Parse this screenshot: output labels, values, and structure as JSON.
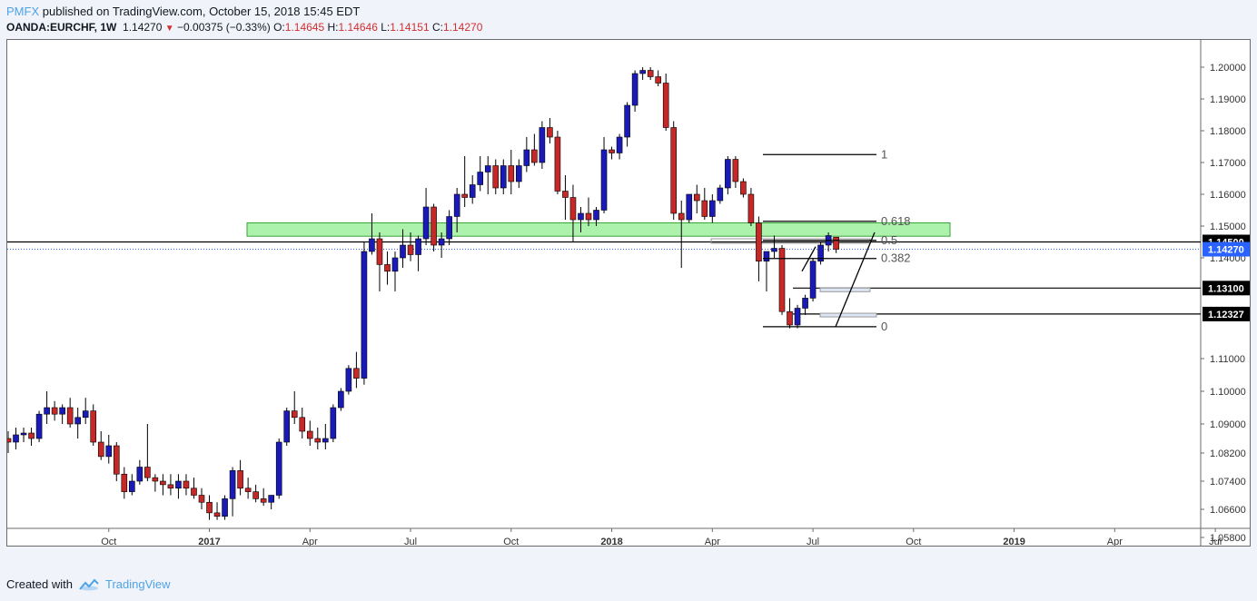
{
  "header": {
    "brand": "PMFX",
    "published": "published on TradingView.com, October 15, 2018 15:45 EDT"
  },
  "symbol": {
    "name": "OANDA:EURCHF, 1W",
    "last": "1.14270",
    "change": "−0.00375 (−0.33%)",
    "open_label": "O:",
    "open": "1.14645",
    "high_label": "H:",
    "high": "1.14646",
    "low_label": "L:",
    "low": "1.14151",
    "close_label": "C:",
    "close": "1.14270"
  },
  "footer": {
    "created_with": "Created with",
    "brand": "TradingView"
  },
  "chart_data": {
    "type": "candlestick",
    "timeframe": "1W",
    "y_ticks": [
      "1.20000",
      "1.19000",
      "1.18000",
      "1.17000",
      "1.16000",
      "1.15000",
      "1.14000",
      "1.11000",
      "1.10000",
      "1.09000",
      "1.08200",
      "1.07400",
      "1.06600",
      "1.05800"
    ],
    "y_tick_values": [
      1.2,
      1.19,
      1.18,
      1.17,
      1.16,
      1.15,
      1.14,
      1.11,
      1.1,
      1.09,
      1.082,
      1.074,
      1.066,
      1.058
    ],
    "x_ticks": [
      {
        "label": "Oct",
        "bold": false,
        "t": 13
      },
      {
        "label": "2017",
        "bold": true,
        "t": 26
      },
      {
        "label": "Apr",
        "bold": false,
        "t": 39
      },
      {
        "label": "Jul",
        "bold": false,
        "t": 52
      },
      {
        "label": "Oct",
        "bold": false,
        "t": 65
      },
      {
        "label": "2018",
        "bold": true,
        "t": 78
      },
      {
        "label": "Apr",
        "bold": false,
        "t": 91
      },
      {
        "label": "Jul",
        "bold": false,
        "t": 104
      },
      {
        "label": "Oct",
        "bold": false,
        "t": 117
      },
      {
        "label": "2019",
        "bold": true,
        "t": 130
      },
      {
        "label": "Apr",
        "bold": false,
        "t": 143
      },
      {
        "label": "Jul",
        "bold": false,
        "t": 156
      }
    ],
    "price_labels": [
      {
        "text": "1.14500",
        "value": 1.145,
        "color": "#000000"
      },
      {
        "text": "1.13100",
        "value": 1.131,
        "color": "#000000"
      },
      {
        "text": "1.12327",
        "value": 1.12327,
        "color": "#000000"
      },
      {
        "text": "1.14270",
        "value": 1.1427,
        "color": "#2962ff"
      }
    ],
    "fib_levels": [
      {
        "label": "1",
        "value": 1.1725
      },
      {
        "label": "0.618",
        "value": 1.1515
      },
      {
        "label": "0.5",
        "value": 1.1455
      },
      {
        "label": "0.382",
        "value": 1.1398
      },
      {
        "label": "0",
        "value": 1.1195
      }
    ],
    "horizontal_lines": [
      1.145,
      1.131,
      1.12327
    ],
    "support_zone": {
      "from": 1.1468,
      "to": 1.151
    },
    "colors": {
      "up": "#1a1ab8",
      "down": "#c62828",
      "zone": "#90ee90",
      "last_price": "#2962ff"
    },
    "candles": [
      [
        1.086,
        1.088,
        1.082,
        1.085
      ],
      [
        1.085,
        1.089,
        1.083,
        1.087
      ],
      [
        1.087,
        1.089,
        1.085,
        1.0875
      ],
      [
        1.0875,
        1.089,
        1.084,
        1.086
      ],
      [
        1.086,
        1.094,
        1.085,
        1.093
      ],
      [
        1.093,
        1.1,
        1.09,
        1.095
      ],
      [
        1.095,
        1.097,
        1.091,
        1.093
      ],
      [
        1.093,
        1.096,
        1.09,
        1.095
      ],
      [
        1.095,
        1.098,
        1.089,
        1.09
      ],
      [
        1.09,
        1.095,
        1.086,
        1.092
      ],
      [
        1.092,
        1.098,
        1.09,
        1.094
      ],
      [
        1.094,
        1.096,
        1.084,
        1.085
      ],
      [
        1.085,
        1.088,
        1.08,
        1.081
      ],
      [
        1.081,
        1.087,
        1.079,
        1.084
      ],
      [
        1.084,
        1.085,
        1.074,
        1.076
      ],
      [
        1.076,
        1.078,
        1.069,
        1.071
      ],
      [
        1.071,
        1.076,
        1.07,
        1.074
      ],
      [
        1.074,
        1.08,
        1.073,
        1.078
      ],
      [
        1.078,
        1.09,
        1.074,
        1.075
      ],
      [
        1.075,
        1.076,
        1.071,
        1.074
      ],
      [
        1.074,
        1.076,
        1.07,
        1.073
      ],
      [
        1.073,
        1.076,
        1.07,
        1.072
      ],
      [
        1.072,
        1.076,
        1.069,
        1.074
      ],
      [
        1.074,
        1.076,
        1.07,
        1.072
      ],
      [
        1.072,
        1.075,
        1.069,
        1.07
      ],
      [
        1.07,
        1.072,
        1.066,
        1.068
      ],
      [
        1.068,
        1.07,
        1.063,
        1.065
      ],
      [
        1.065,
        1.068,
        1.063,
        1.064
      ],
      [
        1.064,
        1.07,
        1.063,
        1.069
      ],
      [
        1.069,
        1.078,
        1.064,
        1.077
      ],
      [
        1.077,
        1.08,
        1.07,
        1.072
      ],
      [
        1.072,
        1.075,
        1.069,
        1.071
      ],
      [
        1.071,
        1.073,
        1.068,
        1.069
      ],
      [
        1.069,
        1.072,
        1.067,
        1.068
      ],
      [
        1.068,
        1.07,
        1.066,
        1.07
      ],
      [
        1.07,
        1.086,
        1.069,
        1.085
      ],
      [
        1.085,
        1.095,
        1.084,
        1.094
      ],
      [
        1.094,
        1.1,
        1.09,
        1.092
      ],
      [
        1.092,
        1.095,
        1.086,
        1.088
      ],
      [
        1.088,
        1.091,
        1.084,
        1.086
      ],
      [
        1.086,
        1.089,
        1.083,
        1.085
      ],
      [
        1.085,
        1.09,
        1.083,
        1.086
      ],
      [
        1.086,
        1.096,
        1.085,
        1.095
      ],
      [
        1.095,
        1.101,
        1.094,
        1.1
      ],
      [
        1.1,
        1.108,
        1.099,
        1.107
      ],
      [
        1.107,
        1.112,
        1.101,
        1.104
      ],
      [
        1.104,
        1.145,
        1.102,
        1.142
      ],
      [
        1.142,
        1.154,
        1.141,
        1.146
      ],
      [
        1.146,
        1.148,
        1.13,
        1.138
      ],
      [
        1.138,
        1.142,
        1.132,
        1.136
      ],
      [
        1.136,
        1.142,
        1.13,
        1.14
      ],
      [
        1.14,
        1.149,
        1.137,
        1.144
      ],
      [
        1.144,
        1.148,
        1.139,
        1.141
      ],
      [
        1.141,
        1.147,
        1.136,
        1.146
      ],
      [
        1.146,
        1.162,
        1.144,
        1.156
      ],
      [
        1.156,
        1.157,
        1.142,
        1.144
      ],
      [
        1.144,
        1.148,
        1.14,
        1.146
      ],
      [
        1.146,
        1.155,
        1.144,
        1.153
      ],
      [
        1.153,
        1.162,
        1.148,
        1.16
      ],
      [
        1.16,
        1.172,
        1.156,
        1.159
      ],
      [
        1.159,
        1.166,
        1.157,
        1.163
      ],
      [
        1.163,
        1.172,
        1.161,
        1.167
      ],
      [
        1.167,
        1.172,
        1.16,
        1.169
      ],
      [
        1.169,
        1.171,
        1.16,
        1.162
      ],
      [
        1.162,
        1.171,
        1.16,
        1.169
      ],
      [
        1.169,
        1.174,
        1.16,
        1.164
      ],
      [
        1.164,
        1.171,
        1.162,
        1.169
      ],
      [
        1.169,
        1.178,
        1.167,
        1.174
      ],
      [
        1.174,
        1.179,
        1.169,
        1.17
      ],
      [
        1.17,
        1.183,
        1.168,
        1.181
      ],
      [
        1.181,
        1.184,
        1.176,
        1.178
      ],
      [
        1.178,
        1.18,
        1.16,
        1.161
      ],
      [
        1.161,
        1.166,
        1.152,
        1.159
      ],
      [
        1.159,
        1.163,
        1.145,
        1.152
      ],
      [
        1.152,
        1.156,
        1.148,
        1.154
      ],
      [
        1.154,
        1.159,
        1.15,
        1.152
      ],
      [
        1.152,
        1.156,
        1.15,
        1.155
      ],
      [
        1.155,
        1.178,
        1.154,
        1.174
      ],
      [
        1.174,
        1.175,
        1.171,
        1.173
      ],
      [
        1.173,
        1.179,
        1.171,
        1.178
      ],
      [
        1.178,
        1.189,
        1.175,
        1.188
      ],
      [
        1.188,
        1.199,
        1.186,
        1.198
      ],
      [
        1.198,
        1.2,
        1.196,
        1.199
      ],
      [
        1.199,
        1.2,
        1.196,
        1.197
      ],
      [
        1.197,
        1.199,
        1.194,
        1.195
      ],
      [
        1.195,
        1.198,
        1.18,
        1.181
      ],
      [
        1.181,
        1.183,
        1.152,
        1.154
      ],
      [
        1.154,
        1.158,
        1.137,
        1.152
      ],
      [
        1.152,
        1.16,
        1.151,
        1.16
      ],
      [
        1.16,
        1.163,
        1.154,
        1.158
      ],
      [
        1.158,
        1.162,
        1.152,
        1.153
      ],
      [
        1.153,
        1.16,
        1.151,
        1.158
      ],
      [
        1.158,
        1.163,
        1.157,
        1.162
      ],
      [
        1.162,
        1.172,
        1.16,
        1.171
      ],
      [
        1.171,
        1.172,
        1.162,
        1.164
      ],
      [
        1.164,
        1.165,
        1.159,
        1.16
      ],
      [
        1.16,
        1.162,
        1.15,
        1.151
      ],
      [
        1.151,
        1.153,
        1.133,
        1.139
      ],
      [
        1.139,
        1.142,
        1.13,
        1.142
      ],
      [
        1.142,
        1.147,
        1.14,
        1.143
      ],
      [
        1.143,
        1.144,
        1.123,
        1.124
      ],
      [
        1.124,
        1.128,
        1.119,
        1.12
      ],
      [
        1.12,
        1.126,
        1.119,
        1.125
      ],
      [
        1.125,
        1.129,
        1.123,
        1.128
      ],
      [
        1.128,
        1.14,
        1.127,
        1.139
      ],
      [
        1.139,
        1.145,
        1.138,
        1.144
      ],
      [
        1.144,
        1.148,
        1.142,
        1.147
      ],
      [
        1.1465,
        1.1465,
        1.1415,
        1.1427
      ]
    ]
  }
}
